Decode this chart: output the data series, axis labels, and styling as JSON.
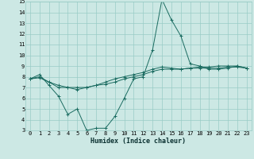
{
  "xlabel": "Humidex (Indice chaleur)",
  "xlim": [
    -0.5,
    23.5
  ],
  "ylim": [
    3,
    15
  ],
  "xticks": [
    0,
    1,
    2,
    3,
    4,
    5,
    6,
    7,
    8,
    9,
    10,
    11,
    12,
    13,
    14,
    15,
    16,
    17,
    18,
    19,
    20,
    21,
    22,
    23
  ],
  "yticks": [
    3,
    4,
    5,
    6,
    7,
    8,
    9,
    10,
    11,
    12,
    13,
    14,
    15
  ],
  "bg_color": "#cce8e4",
  "grid_color": "#99ccc6",
  "line_color": "#1a6b60",
  "tick_fontsize": 5.0,
  "xlabel_fontsize": 6.0,
  "series": [
    [
      7.8,
      8.2,
      7.2,
      6.2,
      4.5,
      5.0,
      3.0,
      3.2,
      3.2,
      4.3,
      6.0,
      7.8,
      8.0,
      10.5,
      15.2,
      13.3,
      11.8,
      9.2,
      9.0,
      8.7,
      8.7,
      8.8,
      9.0,
      8.8
    ],
    [
      7.8,
      8.0,
      7.5,
      7.2,
      7.0,
      7.0,
      7.0,
      7.2,
      7.3,
      7.5,
      7.8,
      8.0,
      8.2,
      8.5,
      8.7,
      8.7,
      8.7,
      8.8,
      8.8,
      8.8,
      8.8,
      8.9,
      8.9,
      8.8
    ],
    [
      7.8,
      7.9,
      7.5,
      7.0,
      7.0,
      6.8,
      7.0,
      7.2,
      7.5,
      7.8,
      8.0,
      8.2,
      8.4,
      8.7,
      8.9,
      8.8,
      8.7,
      8.8,
      8.9,
      8.9,
      9.0,
      9.0,
      9.0,
      8.8
    ]
  ]
}
